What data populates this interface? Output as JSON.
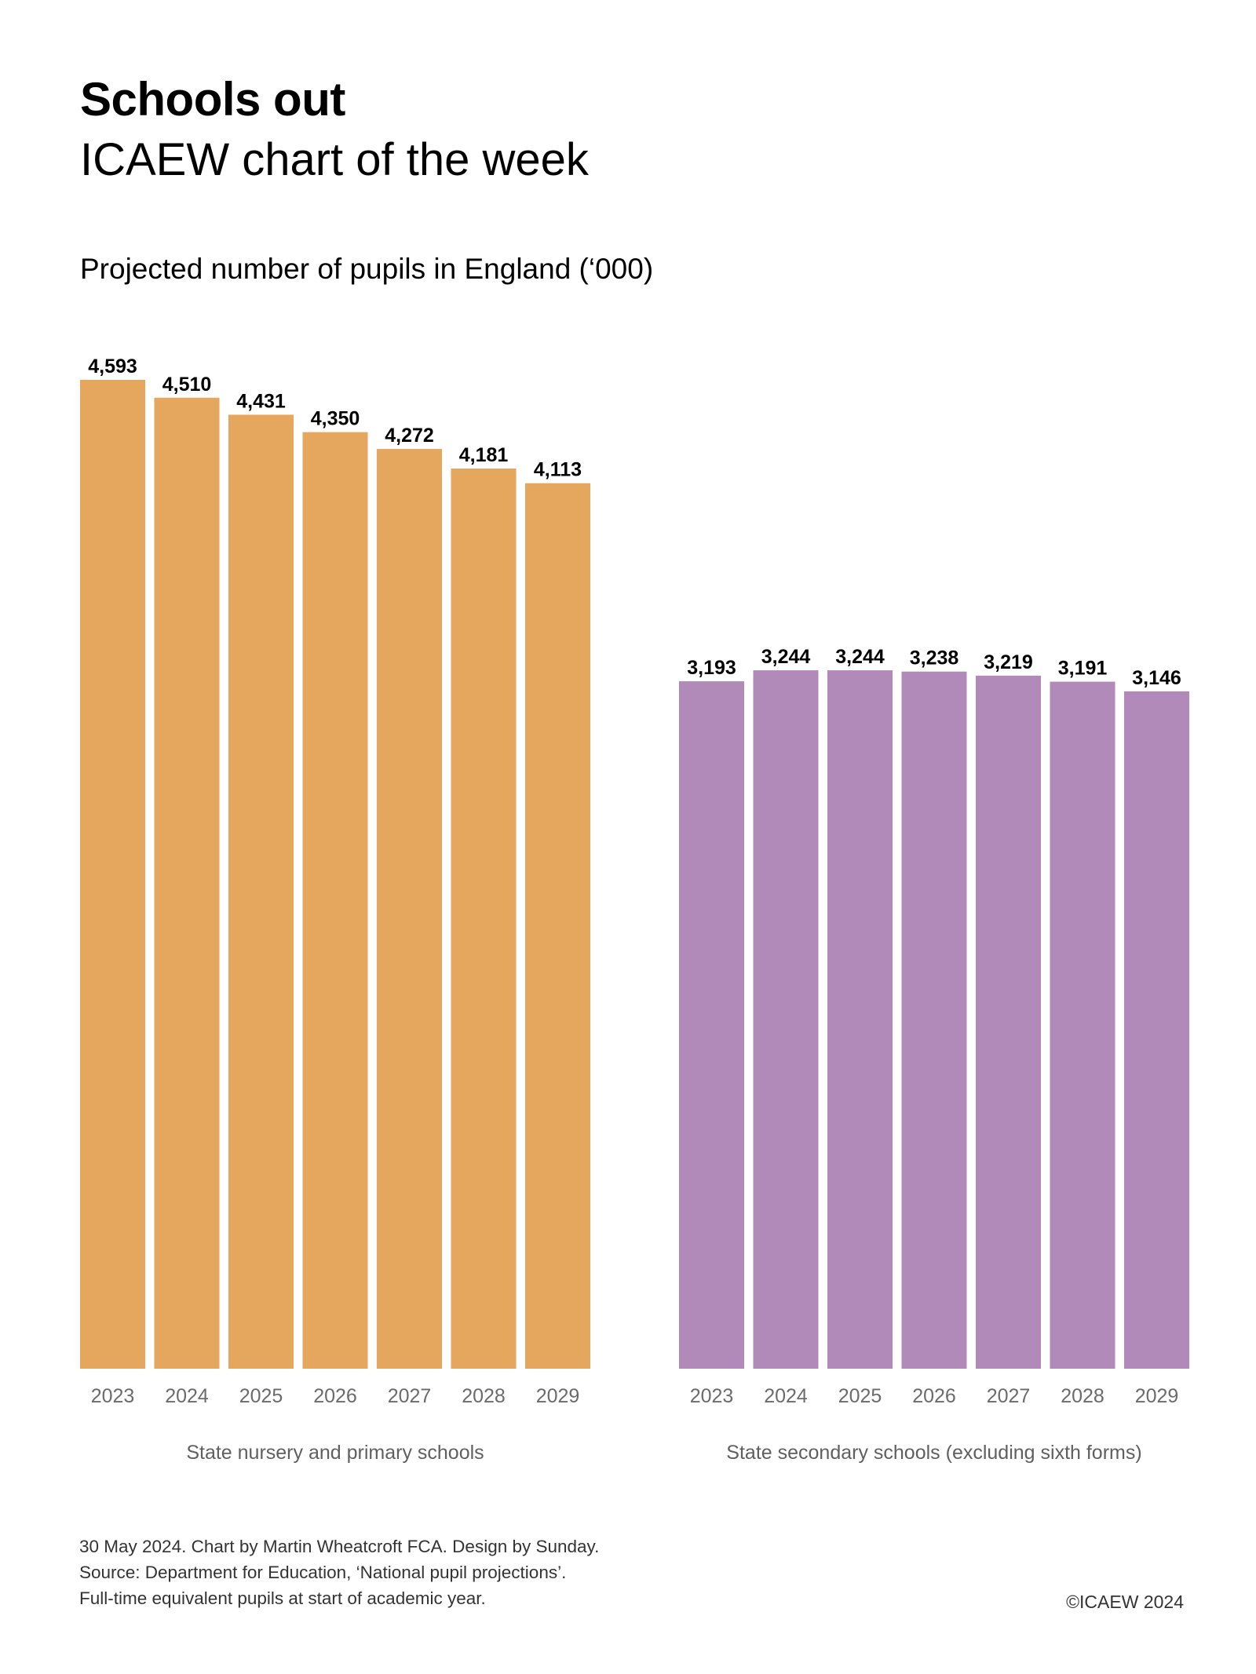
{
  "header": {
    "title": "Schools out",
    "subtitle": "ICAEW chart of the week",
    "chart_heading": "Projected number of pupils in England (‘000)"
  },
  "footer": {
    "line1": "30 May 2024.  Chart by Martin Wheatcroft FCA. Design by Sunday.",
    "line2": "Source: Department for Education, ‘National pupil projections’.",
    "line3": "Full-time equivalent pupils at start of academic year.",
    "copyright": "©ICAEW 2024"
  },
  "chart_data": {
    "type": "bar",
    "title": "Projected number of pupils in England ('000)",
    "xlabel": "",
    "ylabel": "",
    "ylim": [
      0,
      4593
    ],
    "grid": false,
    "legend": "none",
    "categories": [
      "2023",
      "2024",
      "2025",
      "2026",
      "2027",
      "2028",
      "2029"
    ],
    "series": [
      {
        "name": "State nursery and primary schools",
        "color": "#E5A65D",
        "values": [
          4593,
          4510,
          4431,
          4350,
          4272,
          4181,
          4113
        ],
        "labels": [
          "4,593",
          "4,510",
          "4,431",
          "4,350",
          "4,272",
          "4,181",
          "4,113"
        ]
      },
      {
        "name": "State secondary schools (excluding sixth forms)",
        "color": "#B28AB9",
        "values": [
          3193,
          3244,
          3244,
          3238,
          3219,
          3191,
          3146
        ],
        "labels": [
          "3,193",
          "3,244",
          "3,244",
          "3,238",
          "3,219",
          "3,191",
          "3,146"
        ]
      }
    ]
  }
}
